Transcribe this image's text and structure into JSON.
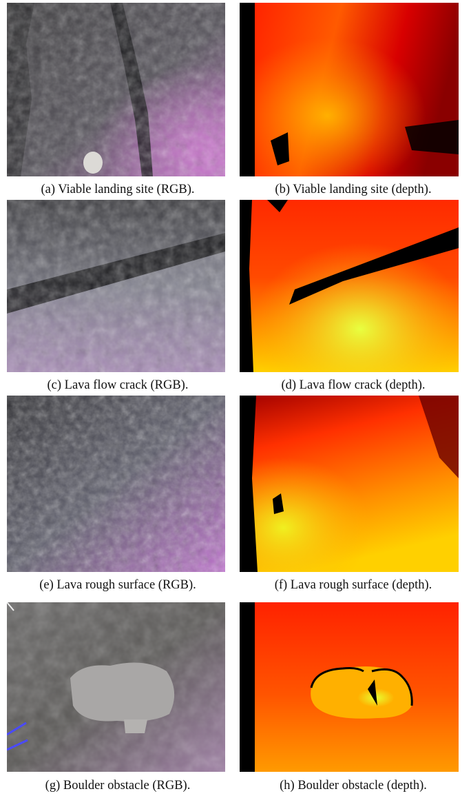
{
  "figure": {
    "panels": [
      {
        "id": "a",
        "caption": "(a) Viable landing site (RGB)."
      },
      {
        "id": "b",
        "caption": "(b) Viable landing site (depth)."
      },
      {
        "id": "c",
        "caption": "(c) Lava flow crack (RGB)."
      },
      {
        "id": "d",
        "caption": "(d) Lava flow crack (depth)."
      },
      {
        "id": "e",
        "caption": "(e) Lava rough surface (RGB)."
      },
      {
        "id": "f",
        "caption": "(f) Lava rough surface (depth)."
      },
      {
        "id": "g",
        "caption": "(g) Boulder obstacle (RGB)."
      },
      {
        "id": "h",
        "caption": "(h) Boulder obstacle (depth)."
      }
    ]
  }
}
